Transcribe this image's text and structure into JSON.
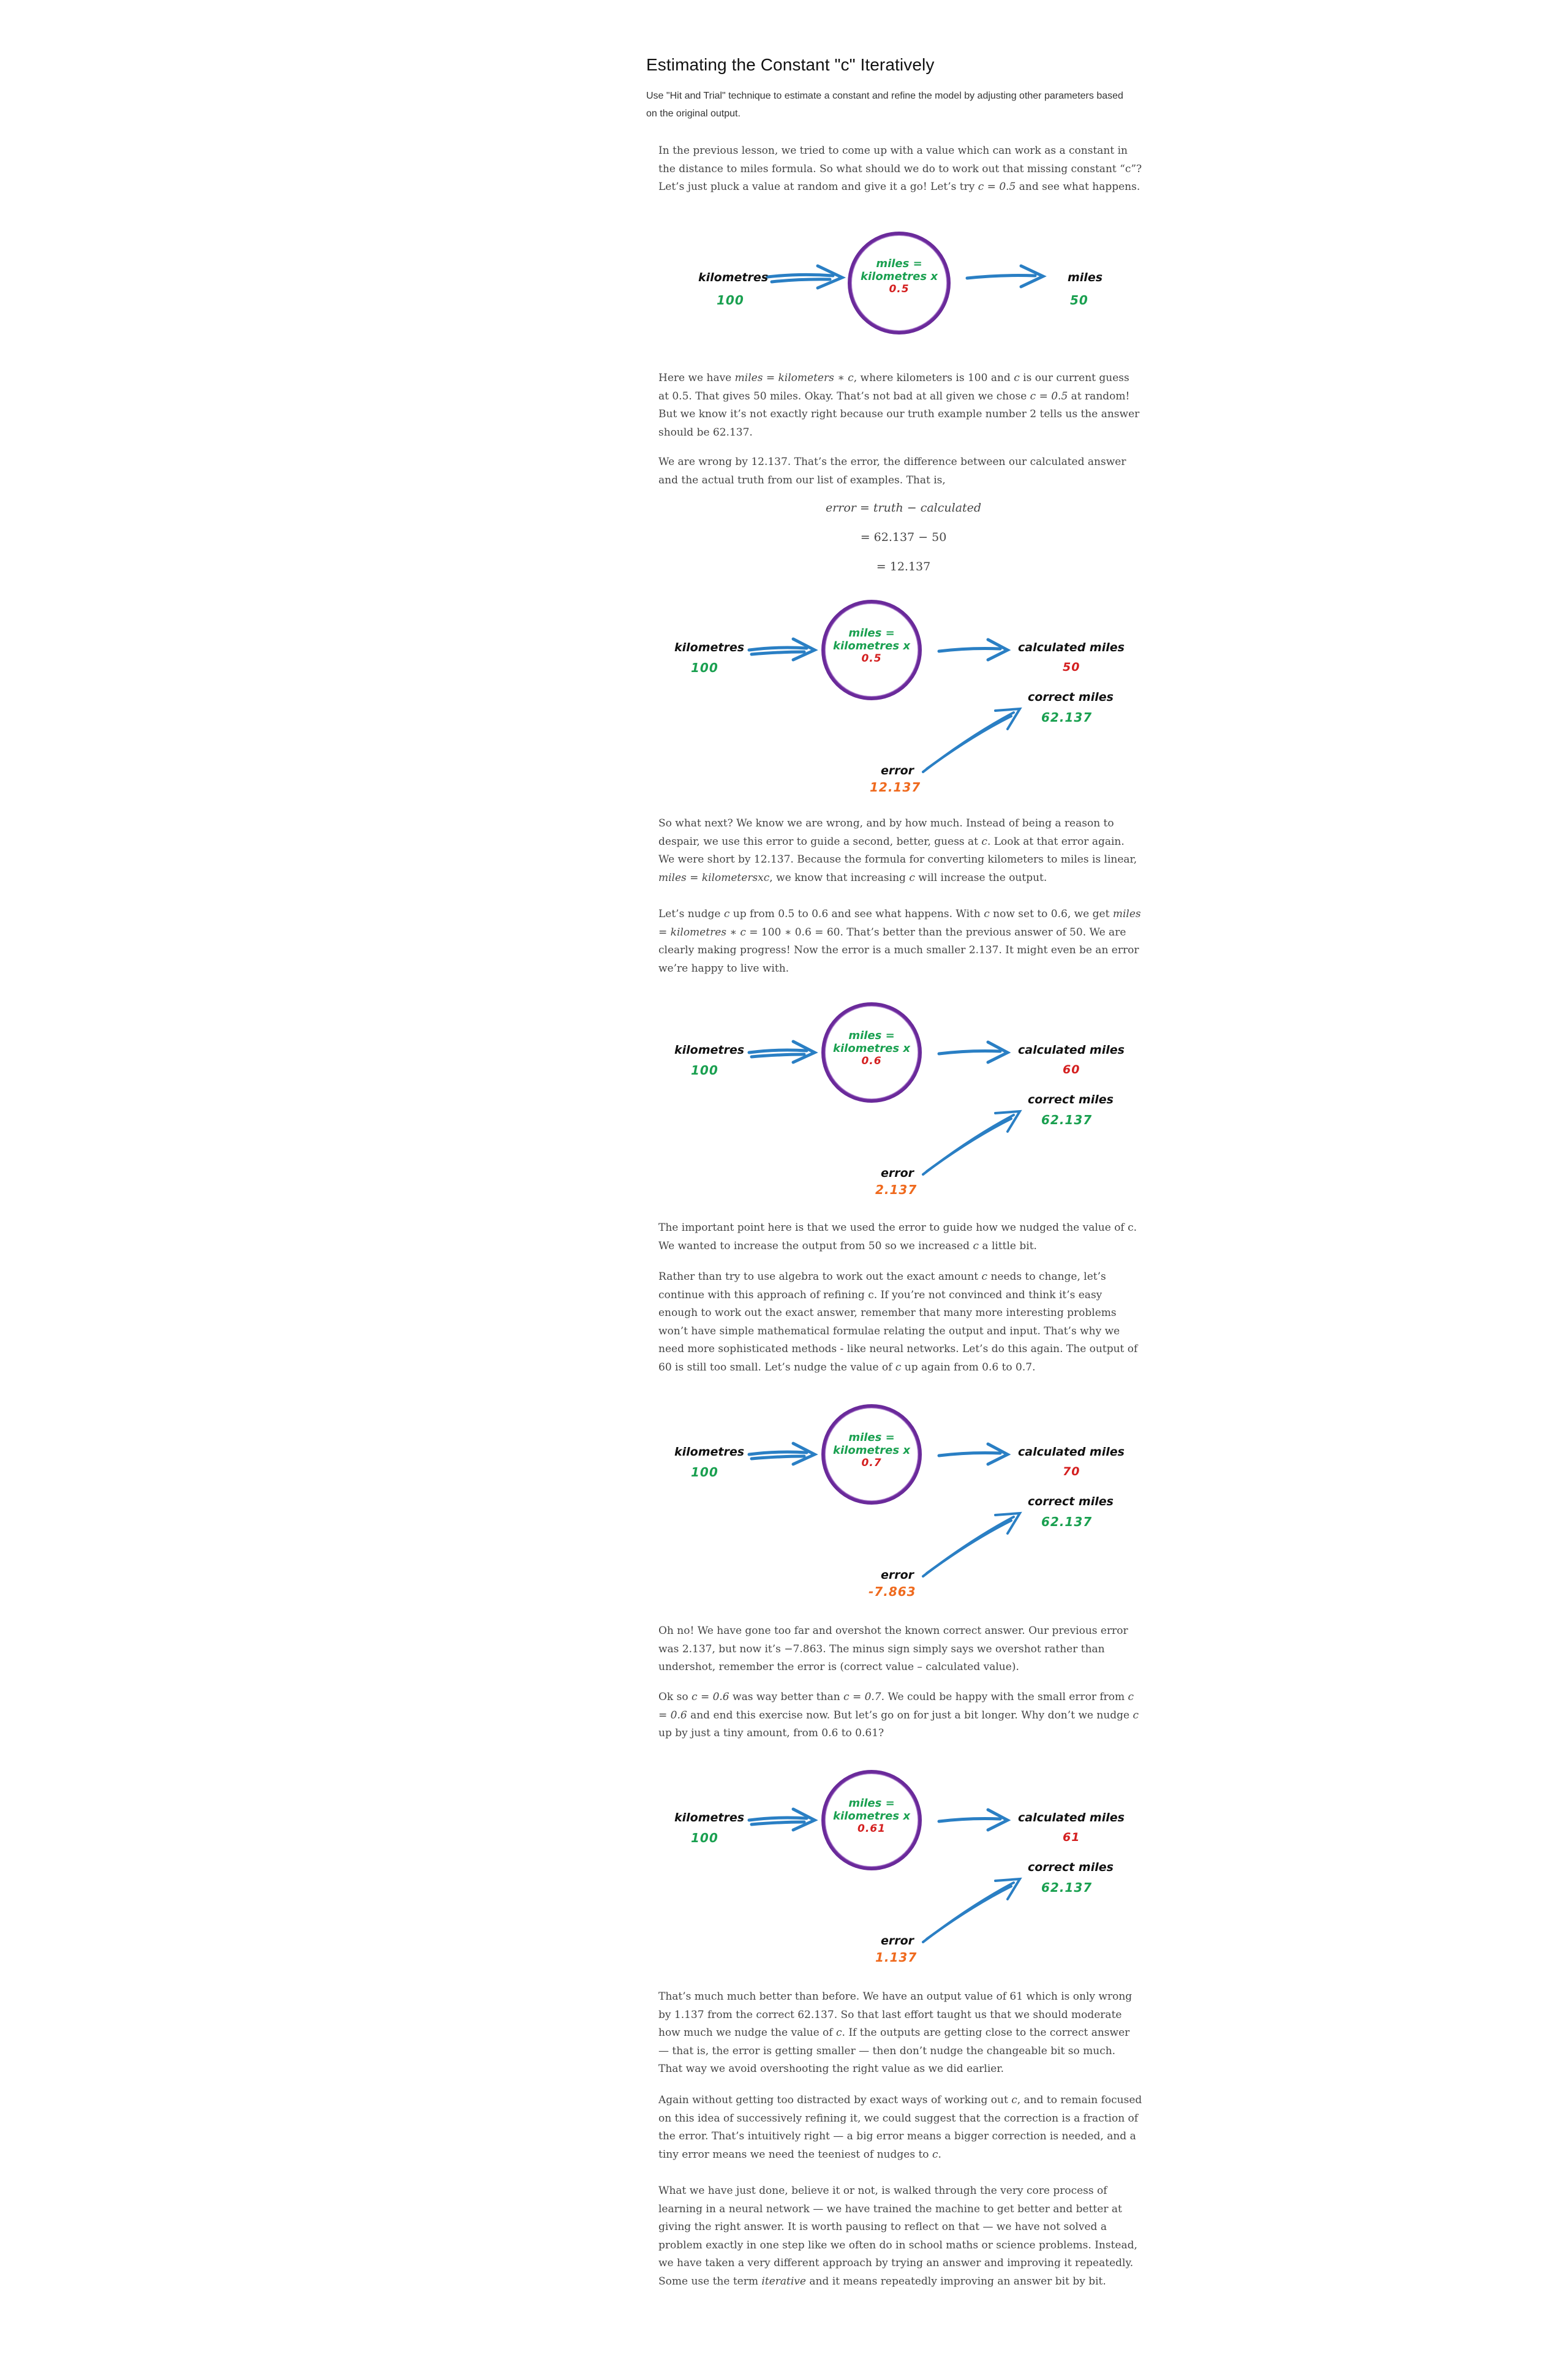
{
  "header": {
    "title": "Estimating the Constant \"c\" Iteratively",
    "subtitle": "Use \"Hit and Trial\" technique to estimate a constant and refine the model by adjusting other parameters based on the original output."
  },
  "paragraphs": {
    "p1a": "In the previous lesson, we tried to come up with a value which can work as a constant in the distance to miles formula. So what should we do to work out that missing constant “c”? Let’s just pluck a value at random and give it a go! Let’s try ",
    "p1m": "c = 0.5",
    "p1b": " and see what happens.",
    "p2a": "Here we have ",
    "p2m": "miles = kilometers ∗ c",
    "p2b": ", where kilometers is 100 and ",
    "p2c": "c",
    "p2d": " is our current guess at 0.5. That gives 50 miles. Okay. That’s not bad at all given we chose ",
    "p2e": "c = 0.5",
    "p2f": " at random! But we know it’s not exactly right because our truth example number 2 tells us the answer should be 62.137.",
    "p3": "We are wrong by 12.137. That’s the error, the difference between our calculated answer and the actual truth from our list of examples. That is,",
    "eq1": "error = truth − calculated",
    "eq2": "= 62.137 − 50",
    "eq3": "= 12.137",
    "p4a": "So what next? We know we are wrong, and by how much. Instead of being a reason to despair, we use this error to guide a second, better, guess at ",
    "p4b": "c",
    "p4c": ". Look at that error again. We were short by 12.137. Because the formula for converting kilometers to miles is linear, ",
    "p4d": "miles = kilometersxc",
    "p4e": ", we know that increasing ",
    "p4f": "c",
    "p4g": " will increase the output.",
    "p5a": "Let’s nudge ",
    "p5b": "c",
    "p5c": " up from 0.5 to 0.6 and see what happens. With ",
    "p5d": "c",
    "p5e": " now set to 0.6, we get ",
    "p5f": "miles = kilometres ∗ c",
    "p5g": " = 100 ∗ 0.6 = 60. That’s better than the previous answer of 50. We are clearly making progress! Now the error is a much smaller 2.137. It might even be an error we’re happy to live with.",
    "p6a": "The important point here is that we used the error to guide how we nudged the value of c. We wanted to increase the output from 50 so we increased ",
    "p6b": "c",
    "p6c": " a little bit.",
    "p7a": "Rather than try to use algebra to work out the exact amount ",
    "p7b": "c",
    "p7c": " needs to change, let’s continue with this approach of refining c. If you’re not convinced and think it’s easy enough to work out the exact answer, remember that many more interesting problems won’t have simple mathematical formulae relating the output and input. That’s why we need more sophisticated methods - like neural networks. Let’s do this again. The output of 60 is still too small. Let’s nudge the value of ",
    "p7d": "c",
    "p7e": " up again from 0.6 to 0.7.",
    "p8": "Oh no! We have gone too far and overshot the known correct answer. Our previous error was 2.137, but now it’s −7.863. The minus sign simply says we overshot rather than undershot, remember the error is (correct value – calculated value).",
    "p9a": "Ok so ",
    "p9b": "c = 0.6",
    "p9c": " was way better than ",
    "p9d": "c = 0.7",
    "p9e": ". We could be happy with the small error from ",
    "p9f": "c = 0.6",
    "p9g": " and end this exercise now. But let’s go on for just a bit longer. Why don’t we nudge ",
    "p9h": "c",
    "p9i": " up by just a tiny amount, from 0.6 to 0.61?",
    "p10a": "That’s much much better than before. We have an output value of 61 which is only wrong by 1.137 from the correct 62.137. So that last effort taught us that we should moderate how much we nudge the value of ",
    "p10b": "c",
    "p10c": ". If the outputs are getting close to the correct answer — that is, the error is getting smaller — then don’t nudge the changeable bit so much. That way we avoid overshooting the right value as we did earlier.",
    "p11a": "Again without getting too distracted by exact ways of working out ",
    "p11b": "c",
    "p11c": ", and to remain focused on this idea of successively refining it, we could suggest that the correction is a fraction of the error. That’s intuitively right — a big error means a bigger correction is needed, and a tiny error means we need the teeniest of nudges to ",
    "p11d": "c",
    "p11e": ".",
    "p12a": "What we have just done, believe it or not, is walked through the very core process of learning in a neural network — we have trained the machine to get better and better at giving the right answer. It is worth pausing to reflect on that — we have not solved a problem exactly in one step like we often do in school maths or science problems. Instead, we have taken a very different approach by trying an answer and improving it repeatedly. Some use the term ",
    "p12b": "iterative",
    "p12c": " and it means repeatedly improving an answer bit by bit."
  },
  "diagrams": {
    "d1": {
      "input_label": "kilometres",
      "input_value": "100",
      "circle_line1": "miles =",
      "circle_line2": "kilometres x",
      "c_value": "0.5",
      "output_label": "miles",
      "output_value": "50"
    },
    "d2": {
      "input_label": "kilometres",
      "input_value": "100",
      "circle_line1": "miles =",
      "circle_line2": "kilometres x",
      "c_value": "0.5",
      "output_label": "calculated miles",
      "output_value": "50",
      "correct_label": "correct miles",
      "correct_value": "62.137",
      "error_label": "error",
      "error_value": "12.137"
    },
    "d3": {
      "input_label": "kilometres",
      "input_value": "100",
      "circle_line1": "miles =",
      "circle_line2": "kilometres x",
      "c_value": "0.6",
      "output_label": "calculated miles",
      "output_value": "60",
      "correct_label": "correct miles",
      "correct_value": "62.137",
      "error_label": "error",
      "error_value": "2.137"
    },
    "d4": {
      "input_label": "kilometres",
      "input_value": "100",
      "circle_line1": "miles =",
      "circle_line2": "kilometres x",
      "c_value": "0.7",
      "output_label": "calculated miles",
      "output_value": "70",
      "correct_label": "correct miles",
      "correct_value": "62.137",
      "error_label": "error",
      "error_value": "-7.863"
    },
    "d5": {
      "input_label": "kilometres",
      "input_value": "100",
      "circle_line1": "miles =",
      "circle_line2": "kilometres x",
      "c_value": "0.61",
      "output_label": "calculated miles",
      "output_value": "61",
      "correct_label": "correct miles",
      "correct_value": "62.137",
      "error_label": "error",
      "error_value": "1.137"
    }
  },
  "colors": {
    "circle": "#6a2a9a",
    "arrow": "#2a7fc4",
    "green": "#1aa050",
    "red": "#d42020",
    "orange": "#ef6a1e"
  }
}
